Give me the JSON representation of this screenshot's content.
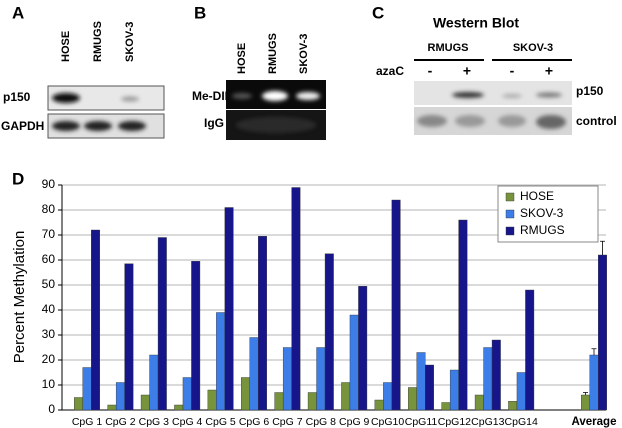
{
  "panels": {
    "a": {
      "label": "A",
      "columns": [
        "HOSE",
        "RMUGS",
        "SKOV-3"
      ],
      "rows": [
        "p150",
        "GAPDH"
      ]
    },
    "b": {
      "label": "B",
      "columns": [
        "HOSE",
        "RMUGS",
        "SKOV-3"
      ],
      "rows": [
        "Me-DIP",
        "IgG"
      ]
    },
    "c": {
      "label": "C",
      "title": "Western Blot",
      "groups": [
        "RMUGS",
        "SKOV-3"
      ],
      "treatment": "azaC",
      "lanes": [
        "-",
        "+",
        "-",
        "+"
      ],
      "rows": [
        "p150",
        "control"
      ]
    }
  },
  "chart_data": {
    "type": "bar",
    "panel_label": "D",
    "y_label": "Percent Methylation",
    "categories": [
      "CpG 1",
      "CpG 2",
      "CpG 3",
      "CpG 4",
      "CpG 5",
      "CpG 6",
      "CpG 7",
      "CpG 8",
      "CpG 9",
      "CpG10",
      "CpG11",
      "CpG12",
      "CpG13",
      "CpG14",
      "Average"
    ],
    "series": [
      {
        "name": "HOSE",
        "color": "#77933c",
        "values": [
          5,
          2,
          6,
          2,
          8,
          13,
          7,
          7,
          11,
          4,
          9,
          3,
          6,
          3.5,
          6
        ],
        "errors": [
          null,
          null,
          null,
          null,
          null,
          null,
          null,
          null,
          null,
          null,
          null,
          null,
          null,
          null,
          1
        ]
      },
      {
        "name": "SKOV-3",
        "color": "#3d7de8",
        "values": [
          17,
          11,
          22,
          13,
          39,
          29,
          25,
          25,
          38,
          11,
          23,
          16,
          25,
          15,
          22
        ],
        "errors": [
          null,
          null,
          null,
          null,
          null,
          null,
          null,
          null,
          null,
          null,
          null,
          null,
          null,
          null,
          2.5
        ]
      },
      {
        "name": "RMUGS",
        "color": "#16168a",
        "values": [
          72,
          58.5,
          69,
          59.5,
          81,
          69.5,
          89,
          62.5,
          49.5,
          84,
          18,
          76,
          28,
          48,
          62
        ],
        "errors": [
          null,
          null,
          null,
          null,
          null,
          null,
          null,
          null,
          null,
          null,
          null,
          null,
          null,
          null,
          5.5
        ]
      }
    ],
    "ylim": [
      0,
      90
    ],
    "yticks": [
      0,
      10,
      20,
      30,
      40,
      50,
      60,
      70,
      80,
      90
    ],
    "grid": true,
    "legend": "upper right"
  }
}
